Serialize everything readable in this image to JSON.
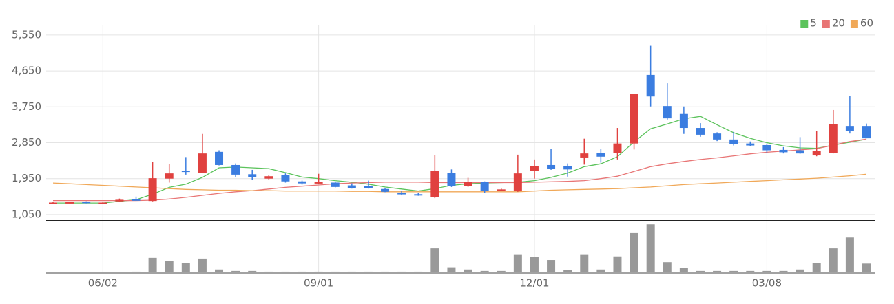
{
  "chart_data": {
    "type": "candlestick",
    "categories": [
      null,
      null,
      null,
      "06/02",
      null,
      null,
      null,
      null,
      null,
      null,
      null,
      null,
      null,
      null,
      null,
      null,
      "09/01",
      null,
      null,
      null,
      null,
      null,
      null,
      null,
      null,
      null,
      null,
      null,
      null,
      "12/01",
      null,
      null,
      null,
      null,
      null,
      null,
      null,
      null,
      null,
      null,
      null,
      null,
      null,
      "03/08",
      null,
      null,
      null,
      null,
      null,
      null
    ],
    "open": [
      1320,
      1340,
      1370,
      1330,
      1380,
      1430,
      1390,
      1950,
      2150,
      2100,
      2620,
      2290,
      2060,
      1950,
      2040,
      1880,
      1840,
      1850,
      1780,
      1770,
      1690,
      1590,
      1560,
      1480,
      2090,
      1760,
      1860,
      1660,
      1640,
      2140,
      2290,
      2270,
      2480,
      2600,
      2600,
      2830,
      4550,
      3770,
      3570,
      3220,
      3080,
      2930,
      2830,
      2790,
      2670,
      2660,
      2530,
      2600,
      3270,
      3270
    ],
    "high": [
      1360,
      1370,
      1380,
      1360,
      1450,
      1500,
      2360,
      2310,
      2490,
      3070,
      2660,
      2330,
      2170,
      2030,
      2080,
      1900,
      2070,
      1870,
      1830,
      1900,
      1720,
      1640,
      1600,
      2540,
      2180,
      1970,
      1880,
      1700,
      2550,
      2430,
      2700,
      2330,
      2950,
      2700,
      3220,
      4080,
      5280,
      4340,
      3760,
      3340,
      3110,
      3120,
      2880,
      2830,
      2740,
      2990,
      3140,
      3670,
      4030,
      3330
    ],
    "low": [
      1310,
      1330,
      1330,
      1320,
      1370,
      1400,
      1380,
      1850,
      2050,
      2090,
      2280,
      1980,
      1920,
      1930,
      1850,
      1800,
      1820,
      1730,
      1700,
      1700,
      1610,
      1530,
      1520,
      1460,
      1740,
      1740,
      1600,
      1640,
      1620,
      1950,
      2170,
      2000,
      2300,
      2350,
      2430,
      2680,
      3760,
      3430,
      3070,
      3000,
      2890,
      2780,
      2760,
      2600,
      2580,
      2570,
      2510,
      2580,
      3080,
      2960
    ],
    "close": [
      1350,
      1360,
      1340,
      1350,
      1420,
      1410,
      1960,
      2080,
      2130,
      2580,
      2290,
      2050,
      1990,
      2010,
      1880,
      1830,
      1860,
      1740,
      1720,
      1720,
      1620,
      1560,
      1540,
      2150,
      1760,
      1860,
      1640,
      1680,
      2080,
      2260,
      2190,
      2180,
      2580,
      2500,
      2830,
      4070,
      4010,
      3460,
      3220,
      3050,
      2930,
      2810,
      2780,
      2660,
      2610,
      2580,
      2650,
      3320,
      3140,
      2960
    ],
    "up_color": "#e0413f",
    "down_color": "#3b7de0",
    "series": [
      {
        "name": "5",
        "color": "#5cc35c",
        "values": [
          1340,
          1340,
          1340,
          1340,
          1380,
          1420,
          1560,
          1730,
          1810,
          1980,
          2220,
          2240,
          2220,
          2200,
          2100,
          1990,
          1950,
          1900,
          1860,
          1810,
          1740,
          1690,
          1640,
          1700,
          1780,
          1820,
          1840,
          1850,
          1860,
          1900,
          1980,
          2090,
          2250,
          2320,
          2500,
          2870,
          3200,
          3320,
          3450,
          3510,
          3300,
          3100,
          2960,
          2850,
          2770,
          2720,
          2710,
          2790,
          2860,
          2940
        ]
      },
      {
        "name": "20",
        "color": "#e87575",
        "values": [
          1400,
          1400,
          1400,
          1400,
          1400,
          1400,
          1410,
          1440,
          1480,
          1530,
          1580,
          1620,
          1650,
          1690,
          1730,
          1760,
          1790,
          1820,
          1840,
          1850,
          1860,
          1860,
          1860,
          1850,
          1850,
          1850,
          1850,
          1850,
          1850,
          1860,
          1870,
          1880,
          1900,
          1950,
          2010,
          2130,
          2250,
          2320,
          2380,
          2430,
          2470,
          2520,
          2570,
          2610,
          2640,
          2670,
          2700,
          2790,
          2880,
          2940
        ]
      },
      {
        "name": "60",
        "color": "#f0a858",
        "values": [
          1840,
          1820,
          1800,
          1780,
          1760,
          1740,
          1720,
          1700,
          1680,
          1670,
          1660,
          1660,
          1650,
          1650,
          1640,
          1640,
          1640,
          1640,
          1630,
          1630,
          1620,
          1620,
          1620,
          1620,
          1620,
          1620,
          1620,
          1620,
          1620,
          1640,
          1660,
          1670,
          1680,
          1690,
          1700,
          1720,
          1740,
          1770,
          1800,
          1820,
          1840,
          1860,
          1880,
          1900,
          1920,
          1940,
          1960,
          1990,
          2020,
          2060
        ]
      }
    ],
    "ylim": [
      910,
      5790
    ],
    "yticks": [
      {
        "value": 1050,
        "label": "1,050"
      },
      {
        "value": 1950,
        "label": "1,950"
      },
      {
        "value": 2850,
        "label": "2,850"
      },
      {
        "value": 3750,
        "label": "3,750"
      },
      {
        "value": 4650,
        "label": "4,650"
      },
      {
        "value": 5550,
        "label": "5,550"
      }
    ],
    "grid": true,
    "legend": "top-right",
    "volume": {
      "color": "#999999",
      "ylim": [
        0,
        70
      ],
      "values": [
        0,
        0,
        0,
        0,
        0,
        1,
        20,
        16,
        13,
        19,
        4,
        2,
        2,
        1,
        1,
        1,
        1,
        1,
        1,
        1,
        1,
        1,
        1,
        33,
        7,
        4,
        2,
        2,
        24,
        21,
        17,
        3,
        24,
        4,
        22,
        54,
        66,
        14,
        6,
        2,
        2,
        2,
        2,
        2,
        2,
        4,
        13,
        33,
        48,
        12
      ]
    }
  }
}
